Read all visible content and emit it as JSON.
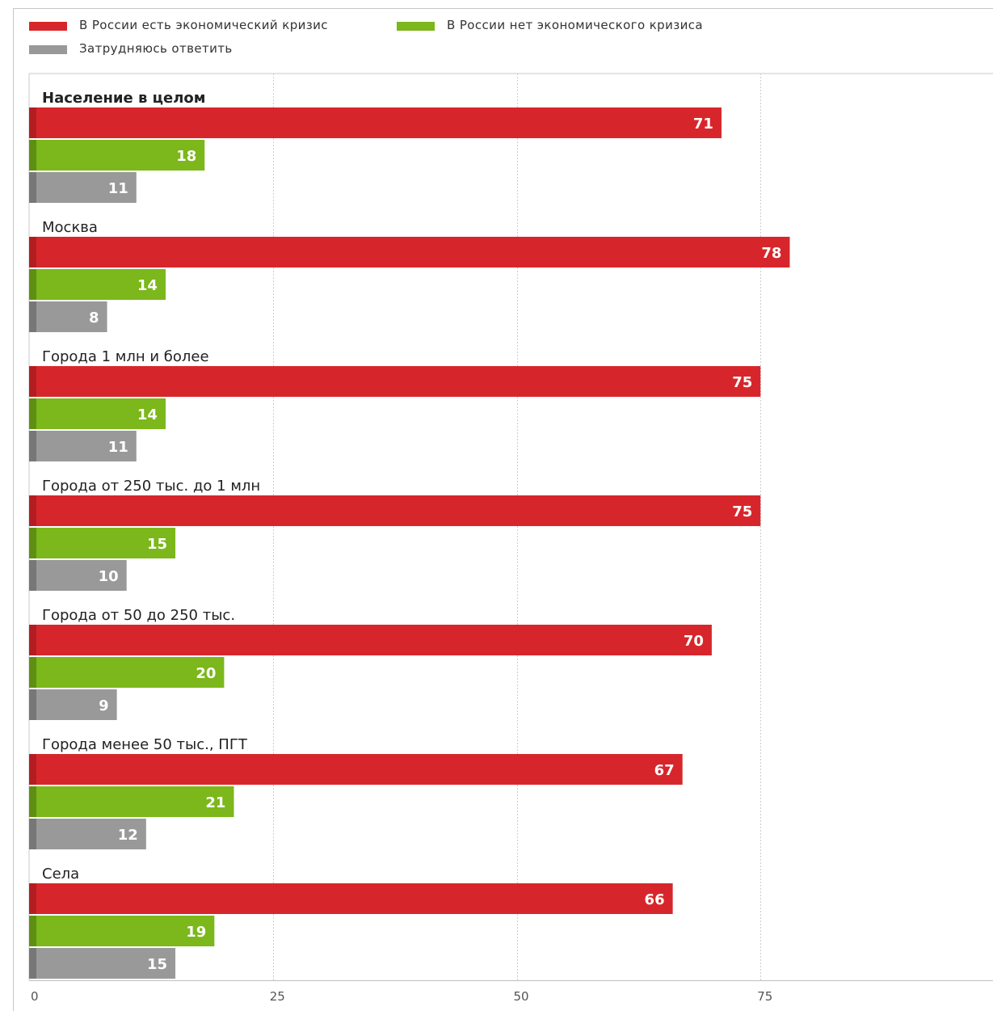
{
  "legend": {
    "items": [
      {
        "label": "В России есть экономический кризис",
        "color": "#d7262b"
      },
      {
        "label": "В России нет экономического кризиса",
        "color": "#7cb71b"
      },
      {
        "label": "Затрудняюсь ответить",
        "color": "#999999"
      }
    ]
  },
  "chart_data": {
    "type": "bar",
    "orientation": "horizontal",
    "categories": [
      "Население в целом",
      "Москва",
      "Города 1 млн и более",
      "Города от 250 тыс. до 1 млн",
      "Города от 50 до 250 тыс.",
      "Города менее 50 тыс., ПГТ",
      "Села"
    ],
    "bold_categories": [
      "Население в целом"
    ],
    "series": [
      {
        "name": "В России есть экономический кризис",
        "color": "#d7262b",
        "values": [
          71,
          78,
          75,
          75,
          70,
          67,
          66
        ]
      },
      {
        "name": "В России нет экономического кризиса",
        "color": "#7cb71b",
        "values": [
          18,
          14,
          14,
          15,
          20,
          21,
          19
        ]
      },
      {
        "name": "Затрудняюсь ответить",
        "color": "#999999",
        "values": [
          11,
          8,
          11,
          10,
          9,
          12,
          15
        ]
      }
    ],
    "xlim": [
      0,
      100
    ],
    "xticks": [
      0,
      25,
      50,
      75,
      100
    ],
    "grid": true,
    "legend_position": "top-left",
    "title": "",
    "xlabel": "",
    "ylabel": ""
  }
}
